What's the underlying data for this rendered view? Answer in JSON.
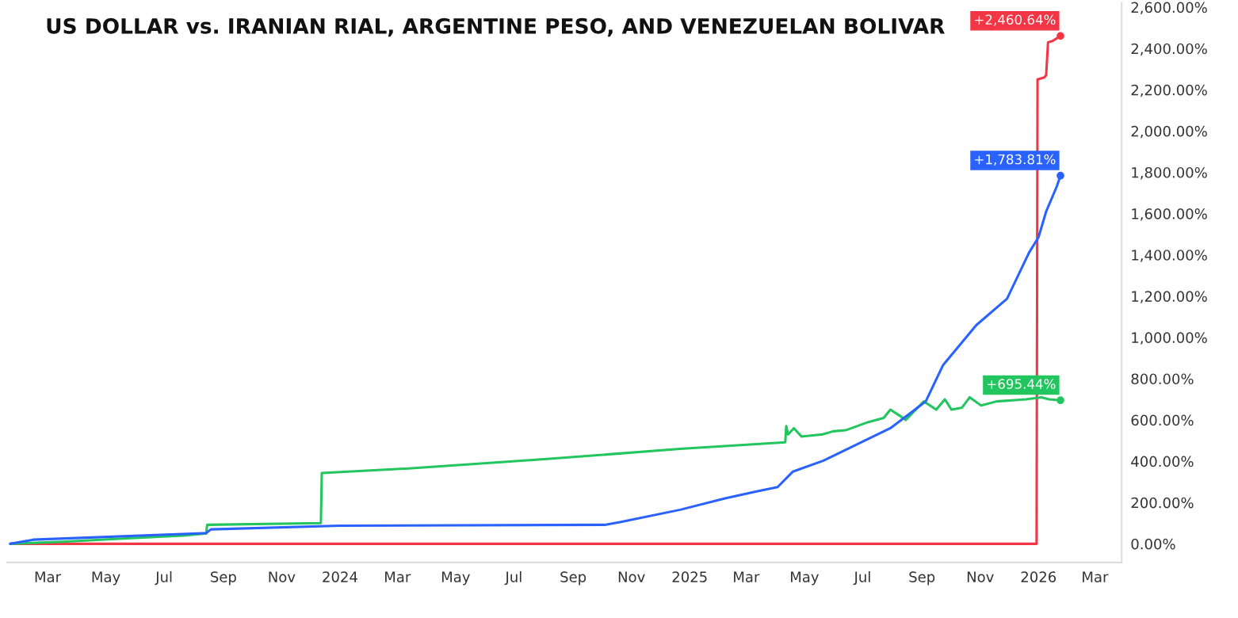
{
  "chart_data": {
    "type": "line",
    "title": "US DOLLAR vs. IRANIAN RIAL, ARGENTINE PESO, AND VENEZUELAN BOLIVAR",
    "xlim": [
      "2023-01-18",
      "2026-03-29"
    ],
    "xticks": [
      {
        "value": "2023-03-01",
        "label": "Mar"
      },
      {
        "value": "2023-05-01",
        "label": "May"
      },
      {
        "value": "2023-07-01",
        "label": "Jul"
      },
      {
        "value": "2023-09-01",
        "label": "Sep"
      },
      {
        "value": "2023-11-01",
        "label": "Nov"
      },
      {
        "value": "2024-01-01",
        "label": "2024"
      },
      {
        "value": "2024-03-01",
        "label": "Mar"
      },
      {
        "value": "2024-05-01",
        "label": "May"
      },
      {
        "value": "2024-07-01",
        "label": "Jul"
      },
      {
        "value": "2024-09-01",
        "label": "Sep"
      },
      {
        "value": "2024-11-01",
        "label": "Nov"
      },
      {
        "value": "2025-01-01",
        "label": "2025"
      },
      {
        "value": "2025-03-01",
        "label": "Mar"
      },
      {
        "value": "2025-05-01",
        "label": "May"
      },
      {
        "value": "2025-07-01",
        "label": "Jul"
      },
      {
        "value": "2025-09-01",
        "label": "Sep"
      },
      {
        "value": "2025-11-01",
        "label": "Nov"
      },
      {
        "value": "2026-01-01",
        "label": "2026"
      },
      {
        "value": "2026-03-01",
        "label": "Mar"
      }
    ],
    "ylim": [
      -90,
      2620
    ],
    "yticks": [
      {
        "value": 0,
        "label": "0.00%"
      },
      {
        "value": 200,
        "label": "200.00%"
      },
      {
        "value": 400,
        "label": "400.00%"
      },
      {
        "value": 600,
        "label": "600.00%"
      },
      {
        "value": 800,
        "label": "800.00%"
      },
      {
        "value": 1000,
        "label": "1,000.00%"
      },
      {
        "value": 1200,
        "label": "1,200.00%"
      },
      {
        "value": 1400,
        "label": "1,400.00%"
      },
      {
        "value": 1600,
        "label": "1,600.00%"
      },
      {
        "value": 1800,
        "label": "1,800.00%"
      },
      {
        "value": 2000,
        "label": "2,000.00%"
      },
      {
        "value": 2200,
        "label": "2,200.00%"
      },
      {
        "value": 2400,
        "label": "2,400.00%"
      },
      {
        "value": 2600,
        "label": "2,600.00%"
      }
    ],
    "grid": false,
    "legend": false,
    "marker": "none",
    "line_style": "solid",
    "series": [
      {
        "color": "#f23645",
        "x": [
          "2023-01-21",
          "2025-12-30",
          "2025-12-31",
          "2026-01-07",
          "2026-01-09",
          "2026-01-11",
          "2026-01-15",
          "2026-01-17",
          "2026-01-24"
        ],
        "values": [
          0,
          0,
          2250,
          2260,
          2270,
          2430,
          2435,
          2440,
          2460.64
        ],
        "value_labels": [
          null,
          null,
          null,
          null,
          null,
          null,
          null,
          null,
          "+2,460.64%"
        ]
      },
      {
        "color": "#22c55e",
        "x": [
          "2023-01-21",
          "2023-03-17",
          "2023-05-19",
          "2023-07-21",
          "2023-08-14",
          "2023-08-15",
          "2023-12-12",
          "2023-12-13",
          "2024-03-13",
          "2024-08-02",
          "2024-12-22",
          "2025-04-11",
          "2025-04-12",
          "2025-04-14",
          "2025-04-20",
          "2025-04-28",
          "2025-05-20",
          "2025-05-31",
          "2025-06-13",
          "2025-07-07",
          "2025-07-23",
          "2025-07-30",
          "2025-08-09",
          "2025-08-15",
          "2025-09-03",
          "2025-09-16",
          "2025-09-25",
          "2025-10-02",
          "2025-10-13",
          "2025-10-21",
          "2025-11-02",
          "2025-11-18",
          "2025-12-19",
          "2026-01-04",
          "2026-01-12",
          "2026-01-24"
        ],
        "values": [
          0,
          10,
          25,
          40,
          50,
          92,
          100,
          343,
          365,
          410,
          460,
          492,
          570,
          530,
          560,
          520,
          530,
          545,
          550,
          590,
          610,
          650,
          620,
          600,
          690,
          650,
          700,
          650,
          660,
          710,
          670,
          690,
          700,
          710,
          700,
          695.44
        ],
        "value_labels": [
          null,
          null,
          null,
          null,
          null,
          null,
          null,
          null,
          null,
          null,
          null,
          null,
          null,
          null,
          null,
          null,
          null,
          null,
          null,
          null,
          null,
          null,
          null,
          null,
          null,
          null,
          null,
          null,
          null,
          null,
          null,
          null,
          null,
          null,
          null,
          "+695.44%"
        ]
      },
      {
        "color": "#2962ff",
        "x": [
          "2023-01-21",
          "2023-02-14",
          "2023-08-14",
          "2023-08-19",
          "2024-01-01",
          "2024-10-04",
          "2024-10-20",
          "2024-12-22",
          "2025-02-07",
          "2025-03-11",
          "2025-04-03",
          "2025-04-19",
          "2025-05-21",
          "2025-06-13",
          "2025-07-30",
          "2025-09-05",
          "2025-09-23",
          "2025-10-28",
          "2025-11-29",
          "2025-12-22",
          "2026-01-01",
          "2026-01-09",
          "2026-01-20",
          "2026-01-24"
        ],
        "values": [
          0,
          20,
          52,
          70,
          88,
          92,
          105,
          165,
          220,
          253,
          275,
          350,
          403,
          455,
          560,
          690,
          865,
          1060,
          1187,
          1410,
          1485,
          1610,
          1730,
          1783.81
        ],
        "value_labels": [
          null,
          null,
          null,
          null,
          null,
          null,
          null,
          null,
          null,
          null,
          null,
          null,
          null,
          null,
          null,
          null,
          null,
          null,
          null,
          null,
          null,
          null,
          null,
          "+1,783.81%"
        ]
      }
    ]
  }
}
